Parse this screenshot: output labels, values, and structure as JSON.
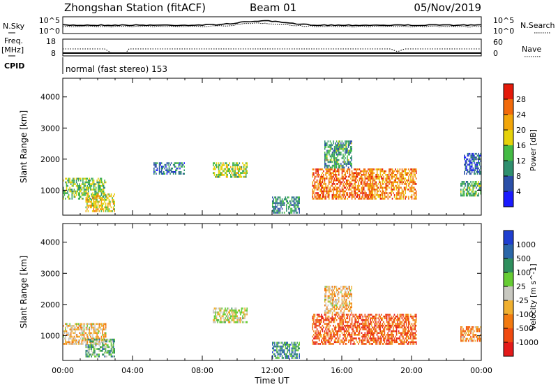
{
  "header": {
    "station": "Zhongshan Station (fitACF)",
    "beam": "Beam 01",
    "date": "05/Nov/2019"
  },
  "status_panel": {
    "nsky_label": "N.Sky",
    "nsearch_label": "N.Search",
    "nsky_ticks": [
      "10^5",
      "10^0"
    ],
    "nsearch_ticks": [
      "10^5",
      "10^0"
    ],
    "freq_label_top": "Freq.",
    "freq_label_unit": "[MHz]",
    "freq_ticks": [
      "18",
      "8"
    ],
    "nave_label": "Nave",
    "nave_ticks": [
      "60",
      "0"
    ],
    "cpid_label": "CPID",
    "cpid_text": "normal (fast stereo) 153"
  },
  "chart_data": [
    {
      "type": "heatmap",
      "name": "power",
      "ylabel": "Slant Range [km]",
      "yticks": [
        "1000",
        "2000",
        "3000",
        "4000"
      ],
      "ylim": [
        200,
        4600
      ],
      "colorbar_label": "Power [dB]",
      "colorbar_ticks": [
        "4",
        "8",
        "12",
        "16",
        "20",
        "24",
        "28"
      ],
      "colorbar_range": [
        0,
        30
      ],
      "colorbar_colors": [
        "#1a1aff",
        "#2b4fa8",
        "#2f8f6e",
        "#44bb44",
        "#e6d20a",
        "#f2a60a",
        "#f26a0a",
        "#e41a0a"
      ],
      "echo_regions": [
        {
          "t0": 0.0,
          "t1": 2.5,
          "r0": 700,
          "r1": 1400,
          "level": 0.45
        },
        {
          "t0": 1.3,
          "t1": 3.0,
          "r0": 300,
          "r1": 900,
          "level": 0.6
        },
        {
          "t0": 5.2,
          "t1": 7.0,
          "r0": 1500,
          "r1": 1900,
          "level": 0.25
        },
        {
          "t0": 8.6,
          "t1": 10.6,
          "r0": 1400,
          "r1": 1900,
          "level": 0.5
        },
        {
          "t0": 12.0,
          "t1": 13.6,
          "r0": 250,
          "r1": 800,
          "level": 0.3
        },
        {
          "t0": 14.3,
          "t1": 17.8,
          "r0": 700,
          "r1": 1700,
          "level": 0.8
        },
        {
          "t0": 15.0,
          "t1": 16.6,
          "r0": 1700,
          "r1": 2600,
          "level": 0.35
        },
        {
          "t0": 17.5,
          "t1": 20.3,
          "r0": 700,
          "r1": 1700,
          "level": 0.75
        },
        {
          "t0": 22.8,
          "t1": 24.0,
          "r0": 800,
          "r1": 1300,
          "level": 0.4
        },
        {
          "t0": 23.0,
          "t1": 24.0,
          "r0": 1500,
          "r1": 2200,
          "level": 0.2
        }
      ]
    },
    {
      "type": "heatmap",
      "name": "velocity",
      "ylabel": "Slant Range [km]",
      "yticks": [
        "1000",
        "2000",
        "3000",
        "4000"
      ],
      "ylim": [
        200,
        4600
      ],
      "xlabel": "Time UT",
      "xticks": [
        "00:00",
        "04:00",
        "08:00",
        "12:00",
        "16:00",
        "20:00",
        "00:00"
      ],
      "xlim": [
        0,
        24
      ],
      "colorbar_label": "Velocity [m s^-1]",
      "colorbar_ticks": [
        "1000",
        "500",
        "100",
        "25",
        "-25",
        "-100",
        "-500",
        "-1000"
      ],
      "colorbar_colors": [
        "#1f3fd0",
        "#2b67a8",
        "#2f8f5e",
        "#66cc33",
        "#c8c8c0",
        "#f0b030",
        "#f27a10",
        "#f04a10",
        "#e41a1a"
      ],
      "echo_regions": [
        {
          "t0": 0.0,
          "t1": 2.5,
          "r0": 700,
          "r1": 1400,
          "level": 0.6
        },
        {
          "t0": 1.3,
          "t1": 3.0,
          "r0": 300,
          "r1": 900,
          "level": 0.35
        },
        {
          "t0": 8.6,
          "t1": 10.6,
          "r0": 1400,
          "r1": 1900,
          "level": 0.5
        },
        {
          "t0": 12.0,
          "t1": 13.6,
          "r0": 250,
          "r1": 800,
          "level": 0.25
        },
        {
          "t0": 14.3,
          "t1": 20.3,
          "r0": 700,
          "r1": 1700,
          "level": 0.8
        },
        {
          "t0": 15.0,
          "t1": 16.6,
          "r0": 1700,
          "r1": 2600,
          "level": 0.6
        },
        {
          "t0": 22.8,
          "t1": 24.0,
          "r0": 800,
          "r1": 1300,
          "level": 0.7
        }
      ]
    }
  ]
}
